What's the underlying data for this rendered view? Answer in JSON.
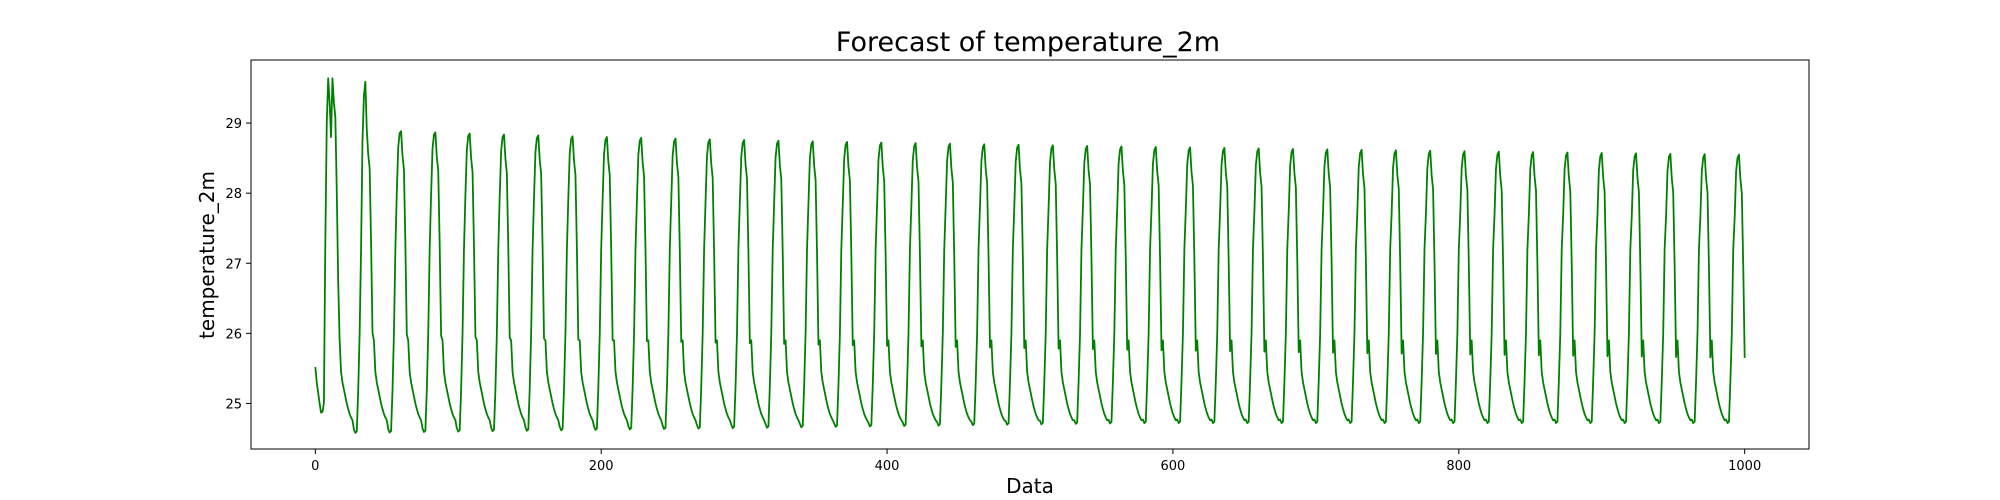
{
  "chart_data": {
    "type": "line",
    "title": "Forecast of temperature_2m",
    "xlabel": "Data",
    "ylabel": "temperature_2m",
    "xlim": [
      -45,
      1045
    ],
    "ylim": [
      24.35,
      29.9
    ],
    "grid": false,
    "x_ticks": [
      0,
      200,
      400,
      600,
      800,
      1000
    ],
    "y_ticks": [
      25,
      26,
      27,
      28,
      29
    ],
    "series": [
      {
        "color": "#008000",
        "period": 24,
        "x_end": 1000,
        "daily_cycle": [
          25.2,
          25.0,
          24.87,
          26.9,
          27.05,
          26.4,
          25.05,
          25.0,
          25.1,
          26.2
        ],
        "cycle_peak_max": 29.64,
        "cycle_peak_min": 28.55,
        "cycle_trough_min": 24.58,
        "cycle_trough_max": 24.72,
        "start_value": 25.52
      }
    ]
  }
}
